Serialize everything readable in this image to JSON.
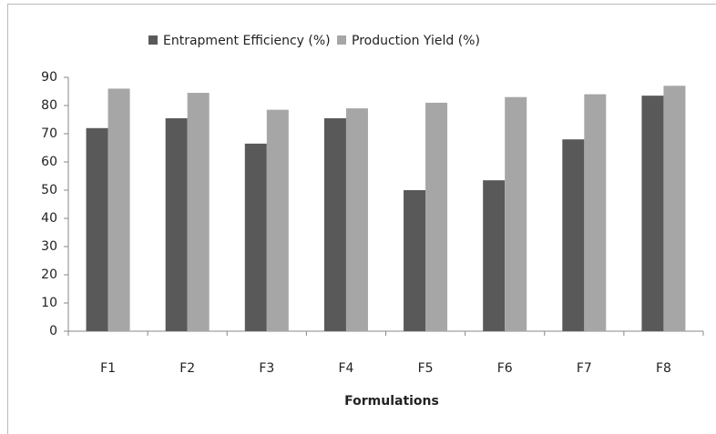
{
  "chart_data": {
    "type": "bar",
    "x_label": "Formulations",
    "categories": [
      "F1",
      "F2",
      "F3",
      "F4",
      "F5",
      "F6",
      "F7",
      "F8"
    ],
    "series": [
      {
        "name": "Entrapment Efficiency (%)",
        "color": "#595959",
        "values": [
          72,
          75.5,
          66.5,
          75.5,
          50,
          53.5,
          68,
          83.5
        ]
      },
      {
        "name": "Production Yield (%)",
        "color": "#a6a6a6",
        "values": [
          86,
          84.5,
          78.5,
          79,
          81,
          83,
          84,
          87
        ]
      }
    ],
    "ylim": [
      0,
      90
    ],
    "yticks": [
      0,
      10,
      20,
      30,
      40,
      50,
      60,
      70,
      80,
      90
    ],
    "grid": false,
    "legend": "top"
  }
}
